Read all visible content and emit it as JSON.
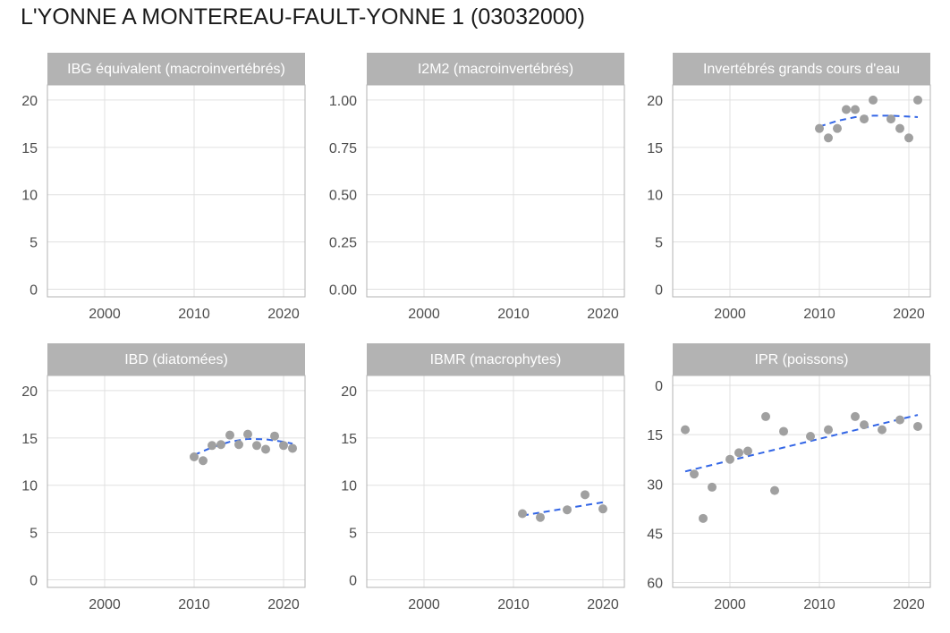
{
  "title": "L'YONNE A MONTEREAU-FAULT-YONNE 1 (03032000)",
  "colors": {
    "strip": "#b3b3b3",
    "strip_text": "#ffffff",
    "point": "#a0a0a0",
    "trend": "#3366e6",
    "grid": "#e0e0e0",
    "panel_border": "#b3b3b3",
    "tick_label": "#4d4d4d"
  },
  "chart_data": [
    {
      "type": "scatter",
      "panel": "IBG équivalent (macroinvertébrés)",
      "xticks": [
        2000,
        2010,
        2020
      ],
      "yticks": [
        0,
        5,
        10,
        15,
        20
      ],
      "xlim": [
        1993.6,
        2022.4
      ],
      "ylim": [
        -0.8,
        21.6
      ],
      "y_reversed": false,
      "points": [],
      "trend": null
    },
    {
      "type": "scatter",
      "panel": "I2M2 (macroinvertébrés)",
      "xticks": [
        2000,
        2010,
        2020
      ],
      "yticks": [
        "0.00",
        "0.25",
        "0.50",
        "0.75",
        "1.00"
      ],
      "xlim": [
        1993.6,
        2022.4
      ],
      "ylim": [
        -0.04,
        1.08
      ],
      "y_reversed": false,
      "points": [],
      "trend": null
    },
    {
      "type": "scatter",
      "panel": "Invertébrés grands cours d'eau",
      "xticks": [
        2000,
        2010,
        2020
      ],
      "yticks": [
        0,
        5,
        10,
        15,
        20
      ],
      "xlim": [
        1993.6,
        2022.4
      ],
      "ylim": [
        -0.8,
        21.6
      ],
      "y_reversed": false,
      "points": [
        [
          2010,
          17
        ],
        [
          2011,
          16
        ],
        [
          2012,
          17
        ],
        [
          2013,
          19
        ],
        [
          2014,
          19
        ],
        [
          2015,
          18
        ],
        [
          2016,
          20
        ],
        [
          2018,
          18
        ],
        [
          2019,
          17
        ],
        [
          2020,
          16
        ],
        [
          2021,
          20
        ]
      ],
      "trend": [
        [
          2010,
          17.2
        ],
        [
          2012,
          17.8
        ],
        [
          2014,
          18.2
        ],
        [
          2016,
          18.35
        ],
        [
          2018,
          18.35
        ],
        [
          2020,
          18.25
        ],
        [
          2021,
          18.2
        ]
      ]
    },
    {
      "type": "scatter",
      "panel": "IBD (diatomées)",
      "xticks": [
        2000,
        2010,
        2020
      ],
      "yticks": [
        0,
        5,
        10,
        15,
        20
      ],
      "xlim": [
        1993.6,
        2022.4
      ],
      "ylim": [
        -0.8,
        21.6
      ],
      "y_reversed": false,
      "points": [
        [
          2010,
          13.0
        ],
        [
          2011,
          12.6
        ],
        [
          2012,
          14.2
        ],
        [
          2013,
          14.3
        ],
        [
          2014,
          15.3
        ],
        [
          2015,
          14.3
        ],
        [
          2016,
          15.4
        ],
        [
          2017,
          14.2
        ],
        [
          2018,
          13.8
        ],
        [
          2019,
          15.2
        ],
        [
          2020,
          14.2
        ],
        [
          2021,
          13.9
        ]
      ],
      "trend": [
        [
          2010,
          13.2
        ],
        [
          2012,
          14.0
        ],
        [
          2014,
          14.6
        ],
        [
          2016,
          14.9
        ],
        [
          2018,
          14.85
        ],
        [
          2020,
          14.6
        ],
        [
          2021,
          14.4
        ]
      ]
    },
    {
      "type": "scatter",
      "panel": "IBMR (macrophytes)",
      "xticks": [
        2000,
        2010,
        2020
      ],
      "yticks": [
        0,
        5,
        10,
        15,
        20
      ],
      "xlim": [
        1993.6,
        2022.4
      ],
      "ylim": [
        -0.8,
        21.6
      ],
      "y_reversed": false,
      "points": [
        [
          2011,
          7.0
        ],
        [
          2013,
          6.6
        ],
        [
          2016,
          7.4
        ],
        [
          2018,
          9.0
        ],
        [
          2020,
          7.5
        ]
      ],
      "trend": [
        [
          2011,
          6.8
        ],
        [
          2020,
          8.2
        ]
      ]
    },
    {
      "type": "scatter",
      "panel": "IPR (poissons)",
      "xticks": [
        2000,
        2010,
        2020
      ],
      "yticks": [
        0,
        15,
        30,
        45,
        60
      ],
      "xlim": [
        1993.6,
        2022.4
      ],
      "ylim": [
        -3.0,
        61.5
      ],
      "y_reversed": true,
      "points": [
        [
          1995,
          13.5
        ],
        [
          1996,
          27
        ],
        [
          1997,
          40.5
        ],
        [
          1998,
          31
        ],
        [
          2000,
          22.5
        ],
        [
          2001,
          20.5
        ],
        [
          2002,
          20
        ],
        [
          2004,
          9.5
        ],
        [
          2005,
          32
        ],
        [
          2006,
          14
        ],
        [
          2009,
          15.5
        ],
        [
          2011,
          13.5
        ],
        [
          2014,
          9.5
        ],
        [
          2015,
          12
        ],
        [
          2017,
          13.5
        ],
        [
          2019,
          10.5
        ],
        [
          2021,
          12.5
        ]
      ],
      "trend": [
        [
          1995,
          26.2
        ],
        [
          2021,
          9.0
        ]
      ]
    }
  ]
}
